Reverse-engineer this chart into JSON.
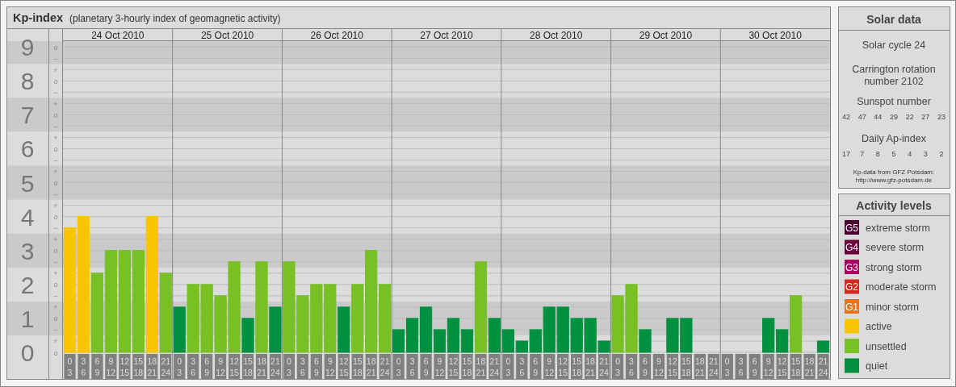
{
  "chart_data": {
    "type": "bar",
    "title": "Kp-index",
    "subtitle": "(planetary 3-hourly index of geomagnetic activity)",
    "categories": [
      "0 3",
      "3 6",
      "6 9",
      "9 12",
      "12 15",
      "15 18",
      "18 21",
      "21 24",
      "0 3",
      "3 6",
      "6 9",
      "9 12",
      "12 15",
      "15 18",
      "18 21",
      "21 24",
      "0 3",
      "3 6",
      "6 9",
      "9 12",
      "12 15",
      "15 18",
      "18 21",
      "21 24",
      "0 3",
      "3 6",
      "6 9",
      "9 12",
      "12 15",
      "15 18",
      "18 21",
      "21 24",
      "0 3",
      "3 6",
      "6 9",
      "9 12",
      "12 15",
      "15 18",
      "18 21",
      "21 24",
      "0 3",
      "3 6",
      "6 9",
      "9 12",
      "12 15",
      "15 18",
      "18 21",
      "21 24",
      "0 3",
      "3 6",
      "6 9",
      "9 12",
      "12 15",
      "15 18",
      "18 21",
      "21 24"
    ],
    "series": [
      {
        "name": "extreme storm",
        "color": "#4d0030",
        "values": [
          null,
          null,
          null,
          null,
          null,
          null,
          null,
          null,
          null,
          null,
          null,
          null,
          null,
          null,
          null,
          null,
          null,
          null,
          null,
          null,
          null,
          null,
          null,
          null,
          null,
          null,
          null,
          null,
          null,
          null,
          null,
          null,
          null,
          null,
          null,
          null,
          null,
          null,
          null,
          null,
          null,
          null,
          null,
          null,
          null,
          null,
          null,
          null,
          null,
          null,
          null,
          null,
          null,
          null,
          null,
          null
        ]
      },
      {
        "name": "severe storm",
        "color": "#6b003c",
        "values": [
          null,
          null,
          null,
          null,
          null,
          null,
          null,
          null,
          null,
          null,
          null,
          null,
          null,
          null,
          null,
          null,
          null,
          null,
          null,
          null,
          null,
          null,
          null,
          null,
          null,
          null,
          null,
          null,
          null,
          null,
          null,
          null,
          null,
          null,
          null,
          null,
          null,
          null,
          null,
          null,
          null,
          null,
          null,
          null,
          null,
          null,
          null,
          null,
          null,
          null,
          null,
          null,
          null,
          null,
          null,
          null
        ]
      },
      {
        "name": "strong storm",
        "color": "#a80060",
        "values": [
          null,
          null,
          null,
          null,
          null,
          null,
          null,
          null,
          null,
          null,
          null,
          null,
          null,
          null,
          null,
          null,
          null,
          null,
          null,
          null,
          null,
          null,
          null,
          null,
          null,
          null,
          null,
          null,
          null,
          null,
          null,
          null,
          null,
          null,
          null,
          null,
          null,
          null,
          null,
          null,
          null,
          null,
          null,
          null,
          null,
          null,
          null,
          null,
          null,
          null,
          null,
          null,
          null,
          null,
          null,
          null
        ]
      },
      {
        "name": "moderate storm",
        "color": "#d42a1e",
        "values": [
          null,
          null,
          null,
          null,
          null,
          null,
          null,
          null,
          null,
          null,
          null,
          null,
          null,
          null,
          null,
          null,
          null,
          null,
          null,
          null,
          null,
          null,
          null,
          null,
          null,
          null,
          null,
          null,
          null,
          null,
          null,
          null,
          null,
          null,
          null,
          null,
          null,
          null,
          null,
          null,
          null,
          null,
          null,
          null,
          null,
          null,
          null,
          null,
          null,
          null,
          null,
          null,
          null,
          null,
          null,
          null
        ]
      },
      {
        "name": "minor storm",
        "color": "#e8731a",
        "values": [
          null,
          null,
          null,
          null,
          null,
          null,
          null,
          null,
          null,
          null,
          null,
          null,
          null,
          null,
          null,
          null,
          null,
          null,
          null,
          null,
          null,
          null,
          null,
          null,
          null,
          null,
          null,
          null,
          null,
          null,
          null,
          null,
          null,
          null,
          null,
          null,
          null,
          null,
          null,
          null,
          null,
          null,
          null,
          null,
          null,
          null,
          null,
          null,
          null,
          null,
          null,
          null,
          null,
          null,
          null,
          null
        ]
      },
      {
        "name": "active",
        "color": "#f8c500",
        "values": [
          3.667,
          4,
          null,
          null,
          null,
          null,
          4,
          null,
          null,
          null,
          null,
          null,
          null,
          null,
          null,
          null,
          null,
          null,
          null,
          null,
          null,
          null,
          null,
          null,
          null,
          null,
          null,
          null,
          null,
          null,
          null,
          null,
          null,
          null,
          null,
          null,
          null,
          null,
          null,
          null,
          null,
          null,
          null,
          null,
          null,
          null,
          null,
          null,
          null,
          null,
          null,
          null,
          null,
          null,
          null,
          null
        ]
      },
      {
        "name": "unsettled",
        "color": "#78c024",
        "values": [
          null,
          null,
          2.333,
          3,
          3,
          3,
          null,
          2.333,
          null,
          2,
          2,
          1.667,
          2.667,
          null,
          2.667,
          null,
          2.667,
          1.667,
          2,
          2,
          null,
          2,
          3,
          2,
          null,
          null,
          null,
          null,
          null,
          null,
          2.667,
          null,
          null,
          null,
          null,
          null,
          null,
          null,
          null,
          null,
          1.667,
          2,
          null,
          null,
          null,
          null,
          null,
          null,
          null,
          null,
          null,
          null,
          null,
          1.667,
          null,
          null
        ]
      },
      {
        "name": "quiet",
        "color": "#009140",
        "values": [
          null,
          null,
          null,
          null,
          null,
          null,
          null,
          null,
          1.333,
          null,
          null,
          null,
          null,
          1,
          null,
          1.333,
          null,
          null,
          null,
          null,
          1.333,
          null,
          null,
          null,
          0.667,
          1,
          1.333,
          0.667,
          1,
          0.667,
          null,
          1,
          0.667,
          0.333,
          0.667,
          1.333,
          1.333,
          1,
          1,
          0.333,
          null,
          null,
          0.667,
          0,
          1,
          1,
          0,
          0,
          0,
          0,
          0,
          1,
          0.667,
          null,
          0,
          0.333
        ]
      }
    ],
    "ylim": [
      0,
      9.17
    ],
    "yticks": [
      0,
      {
        "value": 0.333,
        "label": null
      },
      {
        "value": 0.667,
        "label": null
      },
      1,
      {
        "value": 1.333,
        "label": null
      },
      {
        "value": 1.667,
        "label": null
      },
      2,
      {
        "value": 2.333,
        "label": null
      },
      {
        "value": 2.667,
        "label": null
      },
      3,
      {
        "value": 3.333,
        "label": null
      },
      {
        "value": 3.667,
        "label": null
      },
      4,
      {
        "value": 4.333,
        "label": null
      },
      {
        "value": 4.667,
        "label": null
      },
      5,
      {
        "value": 5.333,
        "label": null
      },
      {
        "value": 5.667,
        "label": null
      },
      6,
      {
        "value": 6.333,
        "label": null
      },
      {
        "value": 6.667,
        "label": null
      },
      7,
      {
        "value": 7.333,
        "label": null
      },
      {
        "value": 7.667,
        "label": null
      },
      8,
      {
        "value": 8.333,
        "label": null
      },
      {
        "value": 8.667,
        "label": null
      },
      9
    ],
    "grid": true,
    "legend": "right",
    "legend_title": "Activity levels",
    "bands": [
      {
        "axis": "y",
        "from": 0.5,
        "to": 1.5,
        "color": "#cacaca"
      },
      {
        "axis": "y",
        "from": 2.5,
        "to": 3.5,
        "color": "#cacaca"
      },
      {
        "axis": "y",
        "from": 4.5,
        "to": 5.5,
        "color": "#cacaca"
      },
      {
        "axis": "y",
        "from": 6.5,
        "to": 7.5,
        "color": "#cacaca"
      },
      {
        "axis": "y",
        "from": 8.5,
        "to": 9.17,
        "color": "#cacaca"
      }
    ],
    "annotations": [
      "24 Oct 2010",
      "25 Oct 2010",
      "26 Oct 2010",
      "27 Oct 2010",
      "28 Oct 2010",
      "29 Oct 2010",
      "30 Oct 2010",
      "Solar data",
      "Solar cycle 24",
      "Carrington rotation number 2102",
      "Sunspot number",
      "42 47 44 29 22 27 23",
      "Daily Ap-index",
      "17 7 8 5 4 3 2",
      "Kp-data from GFZ Potsdam: http://www.gfz-potsdam.de",
      "o",
      "+",
      "−",
      "o",
      "+",
      "−",
      "o",
      "+",
      "−",
      "o",
      "+",
      "−",
      "o",
      "+",
      "−",
      "o",
      "+",
      "−",
      "o",
      "+",
      "−",
      "o",
      "+",
      "−",
      "o",
      "+",
      "−",
      "o",
      "G5",
      "G4",
      "G3",
      "G2",
      "G1"
    ]
  }
}
